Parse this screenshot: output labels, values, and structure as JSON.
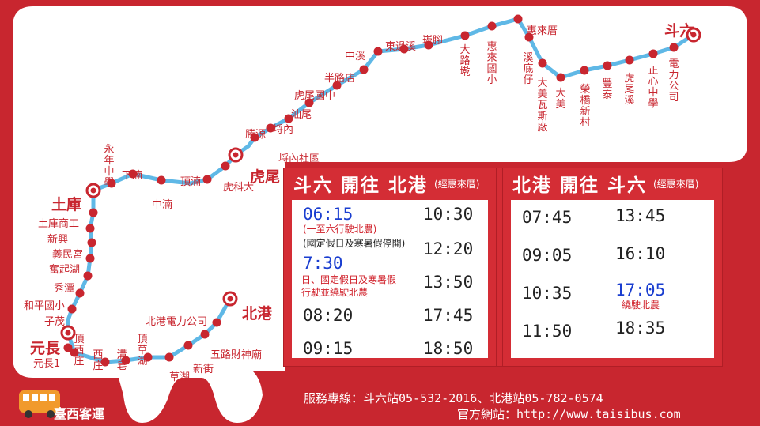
{
  "colors": {
    "background": "#c8262f",
    "route": "#5fb8e6",
    "stop": "#c8262f",
    "label": "#c8262f",
    "blue": "#1a3ed0"
  },
  "major_stops": {
    "douliu": "斗六",
    "hulwei": "虎尾",
    "tuku": "土庫",
    "yuanchang": "元長",
    "beigang": "北港"
  },
  "stops": [
    "斗六",
    "電力公司",
    "正心中學",
    "虎尾溪",
    "豐泰",
    "榮橋新村",
    "大美",
    "大美瓦斯廠",
    "溪底仔",
    "惠來厝",
    "惠來國小",
    "大路墘",
    "崁腳",
    "東過溪",
    "中溪",
    "半路店",
    "虎尾國中",
    "汕尾",
    "埒內",
    "勝源",
    "埒內社區",
    "虎尾",
    "虎科大",
    "頂湳",
    "中湳",
    "下湳",
    "永年中學",
    "土庫",
    "土庫商工",
    "新興",
    "義民宮",
    "奮起湖",
    "秀潭",
    "和平國小",
    "子茂",
    "元長",
    "元長1",
    "頂西庄",
    "西庄",
    "溝皂",
    "頂草湖",
    "草湖",
    "新街",
    "五路財神廟",
    "北港電力公司",
    "北港"
  ],
  "panel_left": {
    "title": "斗六 開往 北港",
    "note": "(經惠來厝)",
    "rows": [
      {
        "left": "06:15",
        "left_note": "(一至六行駛北農)",
        "left_note2": "(國定假日及寒暑假停開)",
        "right": "10:30"
      },
      {
        "left": "",
        "right": "12:20"
      },
      {
        "left": "7:30",
        "left_note": "日、國定假日及寒暑假",
        "left_note2": "行駛並繞駛北農",
        "right": "13:50"
      },
      {
        "left": "08:20",
        "right": "17:45"
      },
      {
        "left": "09:15",
        "right": "18:50"
      }
    ]
  },
  "panel_right": {
    "title": "北港 開往 斗六",
    "note": "(經惠來厝)",
    "rows": [
      {
        "left": "07:45",
        "right": "13:45"
      },
      {
        "left": "09:05",
        "right": "16:10"
      },
      {
        "left": "10:35",
        "right": "17:05",
        "right_note": "繞駛北農"
      },
      {
        "left": "11:50",
        "right": "18:35"
      }
    ]
  },
  "footer": {
    "hotline": "服務專線：斗六站05-532-2016、北港站05-782-0574",
    "website": "官方網站：http://www.taisibus.com"
  },
  "logo": {
    "text": "臺西客運"
  }
}
